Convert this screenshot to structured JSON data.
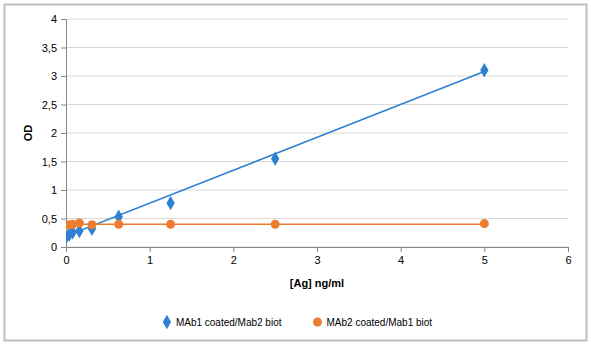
{
  "chart_data": {
    "type": "scatter",
    "x_label": "[Ag] ng/ml",
    "y_label": "OD",
    "x": [
      0,
      0.04,
      0.08,
      0.16,
      0.31,
      0.63,
      1.25,
      2.5,
      5
    ],
    "series": [
      {
        "name": "MAb1 coated/Mab2 biot",
        "color": "#2f80d1",
        "marker": "diamond",
        "line_style": "solid",
        "values": [
          0.17,
          0.22,
          0.26,
          0.28,
          0.32,
          0.53,
          0.77,
          1.55,
          3.1
        ],
        "trendline": {
          "x": [
            0,
            5
          ],
          "values": [
            0.19,
            3.08
          ]
        }
      },
      {
        "name": "MAb2 coated/Mab1 biot",
        "color": "#ed7d31",
        "marker": "circle",
        "line_style": "solid",
        "values": [
          0.38,
          0.39,
          0.4,
          0.42,
          0.39,
          0.4,
          0.4,
          0.4,
          0.41
        ],
        "trendline": {
          "x": [
            0,
            5
          ],
          "values": [
            0.4,
            0.4
          ]
        }
      }
    ],
    "xlim": [
      0,
      6
    ],
    "xticks": [
      0,
      1,
      2,
      3,
      4,
      5,
      6
    ],
    "ylim": [
      0,
      4
    ],
    "yticks": [
      0,
      {
        "value": 0.5,
        "label": "0,5"
      },
      1,
      {
        "value": 1.5,
        "label": "1,5"
      },
      2,
      {
        "value": 2.5,
        "label": "2,5"
      },
      3,
      {
        "value": 3.5,
        "label": "3,5"
      },
      4
    ],
    "grid": true,
    "legend": "bottom"
  }
}
